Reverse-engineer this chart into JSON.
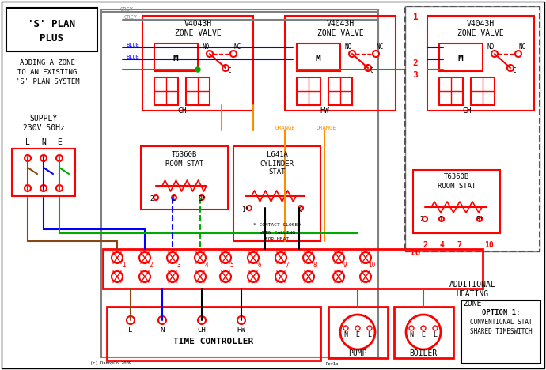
{
  "title": "'S' PLAN PLUS",
  "subtitle": "ADDING A ZONE\nTO AN EXISTING\n'S' PLAN SYSTEM",
  "supply_text": "SUPPLY\n230V 50Hz",
  "lne_labels": [
    "L",
    "N",
    "E"
  ],
  "bg_color": "#ffffff",
  "border_color": "#000000",
  "red": "#ff0000",
  "blue": "#0000ff",
  "green": "#00aa00",
  "orange": "#ff8c00",
  "brown": "#8B4513",
  "grey": "#808080",
  "black": "#000000",
  "dashed_border": "#555555"
}
